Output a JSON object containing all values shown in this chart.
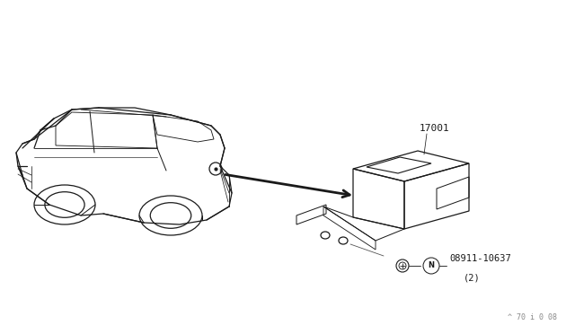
{
  "bg_color": "#ffffff",
  "line_color": "#1a1a1a",
  "title_label": "17001",
  "part_label": "08911-10637",
  "part_qty": "(2)",
  "watermark": "^ 70 i 0 08",
  "N_label": "N"
}
